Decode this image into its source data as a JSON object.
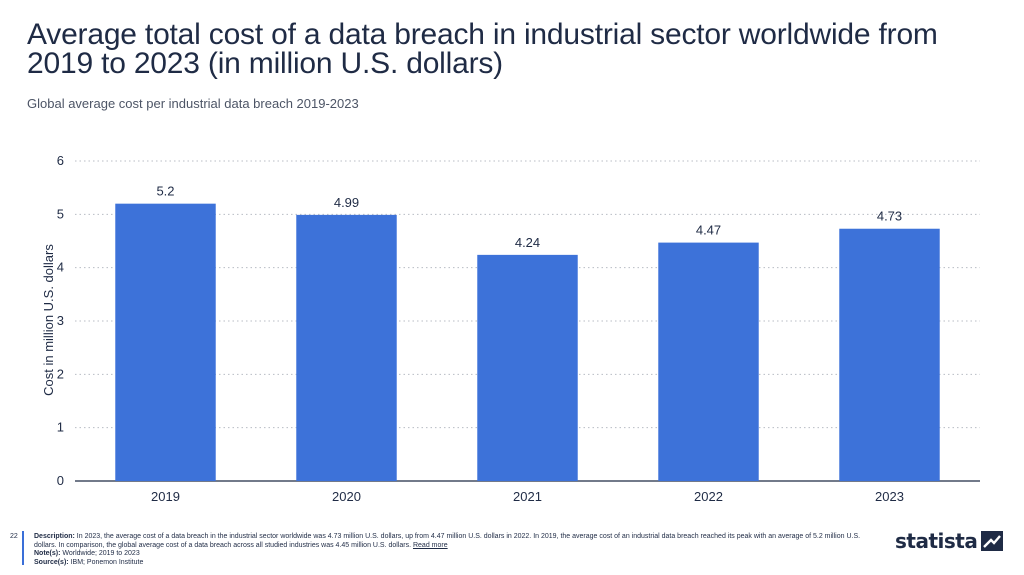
{
  "title": "Average total cost of a data breach in industrial sector worldwide from 2019 to 2023 (in million U.S. dollars)",
  "subtitle": "Global average cost per industrial data breach 2019-2023",
  "page_number": "22",
  "footer": {
    "description_label": "Description:",
    "description": "In 2023, the average cost of a data breach in the industrial sector worldwide was 4.73 million U.S. dollars, up from 4.47 million U.S. dollars in 2022. In 2019, the average cost of an industrial data breach reached its peak with an average of 5.2 million U.S. dollars. In comparison, the global average cost of a data breach across all studied industries was 4.45 million U.S. dollars.",
    "read_more": "Read more",
    "notes_label": "Note(s):",
    "notes": "Worldwide; 2019 to 2023",
    "sources_label": "Source(s):",
    "sources": "IBM; Ponemon Institute"
  },
  "brand": {
    "name": "statista",
    "icon": "statista-logo-icon"
  },
  "colors": {
    "bar": "#3d72d9",
    "grid": "#b8bcc4",
    "text": "#1f2b45"
  },
  "chart_data": {
    "type": "bar",
    "categories": [
      "2019",
      "2020",
      "2021",
      "2022",
      "2023"
    ],
    "values": [
      5.2,
      4.99,
      4.24,
      4.47,
      4.73
    ],
    "data_labels": [
      "5.2",
      "4.99",
      "4.24",
      "4.47",
      "4.73"
    ],
    "xlabel": "",
    "ylabel": "Cost in million U.S. dollars",
    "ylim": [
      0,
      6
    ],
    "yticks": [
      0,
      1,
      2,
      3,
      4,
      5,
      6
    ],
    "grid": true
  }
}
